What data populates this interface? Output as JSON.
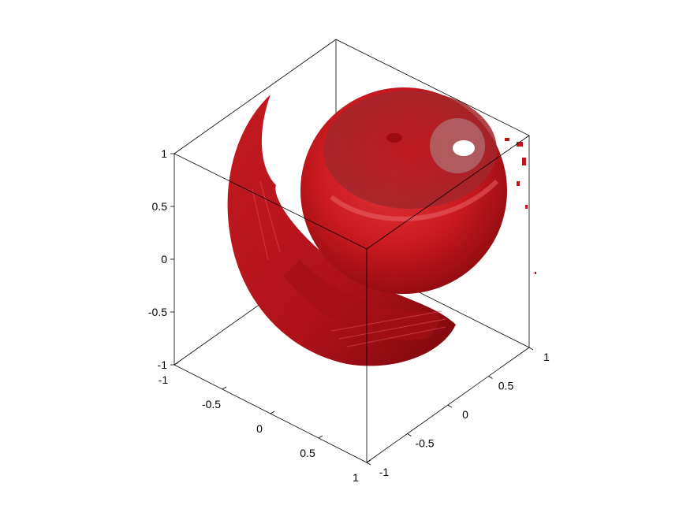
{
  "chart_data": {
    "type": "isosurface",
    "projection": "3d",
    "surface_color": "#c0141c",
    "axes": {
      "x": {
        "lim": [
          -1,
          1
        ],
        "ticks": [
          -1,
          -0.5,
          0,
          0.5,
          1
        ],
        "tick_labels": [
          "-1",
          "-0.5",
          "0",
          "0.5",
          "1"
        ]
      },
      "y": {
        "lim": [
          -1,
          1
        ],
        "ticks": [
          -1,
          -0.5,
          0,
          0.5,
          1
        ],
        "tick_labels": [
          "-1",
          "-0.5",
          "0",
          "0.5",
          "1"
        ]
      },
      "z": {
        "lim": [
          -1,
          1
        ],
        "ticks": [
          -1,
          -0.5,
          0,
          0.5,
          1
        ],
        "tick_labels": [
          "-1",
          "-0.5",
          "0",
          "0.5",
          "1"
        ]
      }
    },
    "box": true,
    "grid": false,
    "title": "",
    "xlabel": "",
    "ylabel": "",
    "zlabel": ""
  }
}
